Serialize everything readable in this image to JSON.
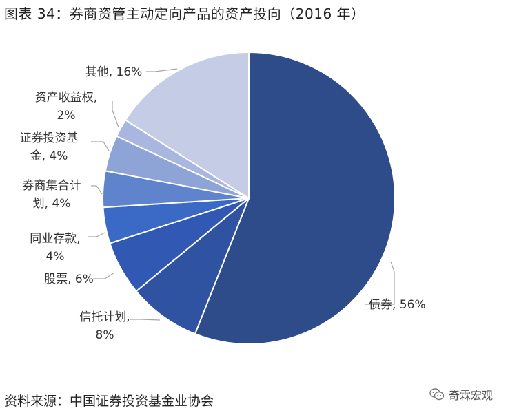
{
  "title": "图表 34：券商资管主动定向产品的资产投向（2016 年）",
  "source": "资料来源：中国证券投资基金业协会",
  "watermark": "奇霖宏观",
  "watermark_icon": "wechat-icon",
  "chart_data": {
    "type": "pie",
    "title": "图表 34：券商资管主动定向产品的资产投向（2016 年）",
    "start": "12 o'clock",
    "direction": "clockwise",
    "slices": [
      {
        "name": "债券",
        "value": 56,
        "label_lines": [
          "债券, 56%"
        ],
        "color": "#2e4c8a"
      },
      {
        "name": "信托计划",
        "value": 8,
        "label_lines": [
          "信托计划,",
          "8%"
        ],
        "color": "#2f53a0"
      },
      {
        "name": "股票",
        "value": 6,
        "label_lines": [
          "股票, 6%"
        ],
        "color": "#3159b4"
      },
      {
        "name": "同业存款",
        "value": 4,
        "label_lines": [
          "同业存款,",
          "4%"
        ],
        "color": "#3b6ac6"
      },
      {
        "name": "券商集合计划",
        "value": 4,
        "label_lines": [
          "券商集合计",
          "划, 4%"
        ],
        "color": "#5f83cc"
      },
      {
        "name": "证券投资基金",
        "value": 4,
        "label_lines": [
          "证券投资基",
          "金, 4%"
        ],
        "color": "#8ea3d6"
      },
      {
        "name": "资产收益权",
        "value": 2,
        "label_lines": [
          "资产收益权,",
          "2%"
        ],
        "color": "#a9b7e0"
      },
      {
        "name": "其他",
        "value": 16,
        "label_lines": [
          "其他, 16%"
        ],
        "color": "#c5cde6"
      }
    ]
  }
}
